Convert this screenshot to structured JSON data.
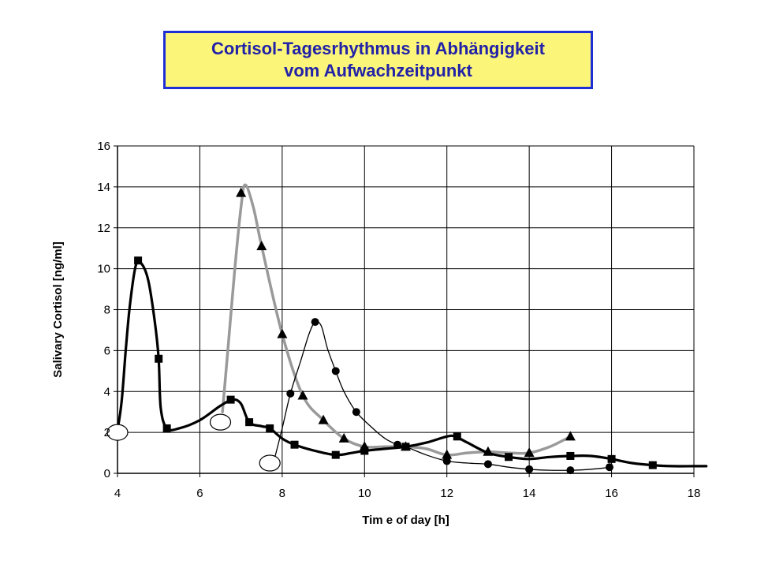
{
  "header": {
    "title_line1": "Cortisol-Tagesrhythmus in Abhängigkeit",
    "title_line2": "vom Aufwachzeitpunkt"
  },
  "chart_data": {
    "type": "line",
    "title": "Cortisol-Tagesrhythmus in Abhängigkeit vom Aufwachzeitpunkt",
    "xlabel": "Tim e of day [h]",
    "ylabel": "Salivary Cortisol [ng/ml]",
    "xlim": [
      4,
      18
    ],
    "ylim": [
      0,
      16
    ],
    "xticks": [
      4,
      6,
      8,
      10,
      12,
      14,
      16,
      18
    ],
    "yticks": [
      0,
      2,
      4,
      6,
      8,
      10,
      12,
      14,
      16
    ],
    "grid": true,
    "legend": "none",
    "series": [
      {
        "marker": "square",
        "color": "#000000",
        "curve": [
          [
            4.0,
            2.1
          ],
          [
            4.1,
            3.5
          ],
          [
            4.2,
            6.0
          ],
          [
            4.3,
            8.2
          ],
          [
            4.45,
            10.2
          ],
          [
            4.6,
            10.2
          ],
          [
            4.75,
            9.4
          ],
          [
            4.9,
            7.5
          ],
          [
            5.0,
            5.6
          ],
          [
            5.05,
            3.2
          ],
          [
            5.2,
            2.2
          ],
          [
            5.5,
            2.2
          ],
          [
            6.0,
            2.6
          ],
          [
            6.5,
            3.3
          ],
          [
            6.8,
            3.6
          ],
          [
            7.0,
            3.4
          ],
          [
            7.2,
            2.5
          ],
          [
            7.5,
            2.3
          ],
          [
            7.7,
            2.2
          ],
          [
            8.0,
            1.7
          ],
          [
            8.3,
            1.4
          ],
          [
            8.8,
            1.1
          ],
          [
            9.3,
            0.9
          ],
          [
            9.7,
            1.0
          ],
          [
            10.0,
            1.1
          ],
          [
            10.5,
            1.2
          ],
          [
            11.0,
            1.3
          ],
          [
            11.5,
            1.5
          ],
          [
            12.0,
            1.8
          ],
          [
            12.2,
            1.8
          ],
          [
            12.5,
            1.5
          ],
          [
            13.0,
            1.0
          ],
          [
            13.5,
            0.8
          ],
          [
            14.0,
            0.7
          ],
          [
            14.5,
            0.8
          ],
          [
            15.0,
            0.85
          ],
          [
            15.5,
            0.85
          ],
          [
            16.0,
            0.7
          ],
          [
            16.5,
            0.5
          ],
          [
            17.0,
            0.4
          ],
          [
            17.5,
            0.35
          ],
          [
            18.0,
            0.35
          ],
          [
            18.3,
            0.35
          ]
        ],
        "points": [
          [
            4.5,
            10.4
          ],
          [
            5.0,
            5.6
          ],
          [
            5.2,
            2.2
          ],
          [
            6.75,
            3.6
          ],
          [
            7.2,
            2.5
          ],
          [
            7.7,
            2.2
          ],
          [
            8.3,
            1.4
          ],
          [
            9.3,
            0.9
          ],
          [
            10.0,
            1.1
          ],
          [
            11.0,
            1.3
          ],
          [
            12.25,
            1.8
          ],
          [
            13.5,
            0.8
          ],
          [
            15.0,
            0.85
          ],
          [
            16.0,
            0.7
          ],
          [
            17.0,
            0.4
          ]
        ]
      },
      {
        "marker": "triangle",
        "color": "#9a9a9a",
        "curve": [
          [
            6.55,
            3.0
          ],
          [
            6.7,
            6.5
          ],
          [
            6.85,
            10.0
          ],
          [
            7.0,
            13.0
          ],
          [
            7.1,
            14.1
          ],
          [
            7.3,
            13.0
          ],
          [
            7.5,
            11.1
          ],
          [
            8.0,
            6.8
          ],
          [
            8.5,
            3.8
          ],
          [
            9.0,
            2.6
          ],
          [
            9.5,
            1.7
          ],
          [
            10.0,
            1.3
          ],
          [
            10.5,
            1.3
          ],
          [
            11.0,
            1.3
          ],
          [
            11.5,
            1.2
          ],
          [
            12.0,
            0.9
          ],
          [
            12.5,
            1.0
          ],
          [
            13.0,
            1.05
          ],
          [
            13.5,
            1.0
          ],
          [
            14.0,
            1.0
          ],
          [
            14.5,
            1.3
          ],
          [
            15.0,
            1.8
          ]
        ],
        "points": [
          [
            7.0,
            13.7
          ],
          [
            7.5,
            11.1
          ],
          [
            8.0,
            6.8
          ],
          [
            8.5,
            3.8
          ],
          [
            9.0,
            2.6
          ],
          [
            9.5,
            1.7
          ],
          [
            10.0,
            1.3
          ],
          [
            11.0,
            1.3
          ],
          [
            12.0,
            0.9
          ],
          [
            13.0,
            1.05
          ],
          [
            14.0,
            1.0
          ],
          [
            15.0,
            1.8
          ]
        ]
      },
      {
        "marker": "circle",
        "color": "#000000",
        "curve": [
          [
            7.8,
            0.6
          ],
          [
            8.0,
            2.2
          ],
          [
            8.2,
            3.9
          ],
          [
            8.45,
            5.5
          ],
          [
            8.65,
            6.8
          ],
          [
            8.8,
            7.4
          ],
          [
            8.95,
            7.2
          ],
          [
            9.1,
            6.1
          ],
          [
            9.3,
            5.0
          ],
          [
            9.5,
            4.0
          ],
          [
            9.8,
            3.0
          ],
          [
            10.2,
            2.2
          ],
          [
            10.5,
            1.7
          ],
          [
            10.8,
            1.4
          ],
          [
            11.0,
            1.3
          ],
          [
            11.5,
            0.9
          ],
          [
            12.0,
            0.6
          ],
          [
            12.5,
            0.5
          ],
          [
            13.0,
            0.45
          ],
          [
            13.5,
            0.3
          ],
          [
            14.0,
            0.2
          ],
          [
            14.5,
            0.15
          ],
          [
            15.0,
            0.15
          ],
          [
            15.5,
            0.2
          ],
          [
            16.0,
            0.3
          ]
        ],
        "points": [
          [
            8.2,
            3.9
          ],
          [
            8.8,
            7.4
          ],
          [
            9.3,
            5.0
          ],
          [
            9.8,
            3.0
          ],
          [
            10.8,
            1.4
          ],
          [
            12.0,
            0.6
          ],
          [
            13.0,
            0.45
          ],
          [
            14.0,
            0.2
          ],
          [
            15.0,
            0.15
          ],
          [
            15.95,
            0.3
          ]
        ]
      }
    ],
    "wake_markers": [
      [
        4.0,
        2.0
      ],
      [
        6.5,
        2.5
      ],
      [
        7.7,
        0.5
      ]
    ]
  }
}
